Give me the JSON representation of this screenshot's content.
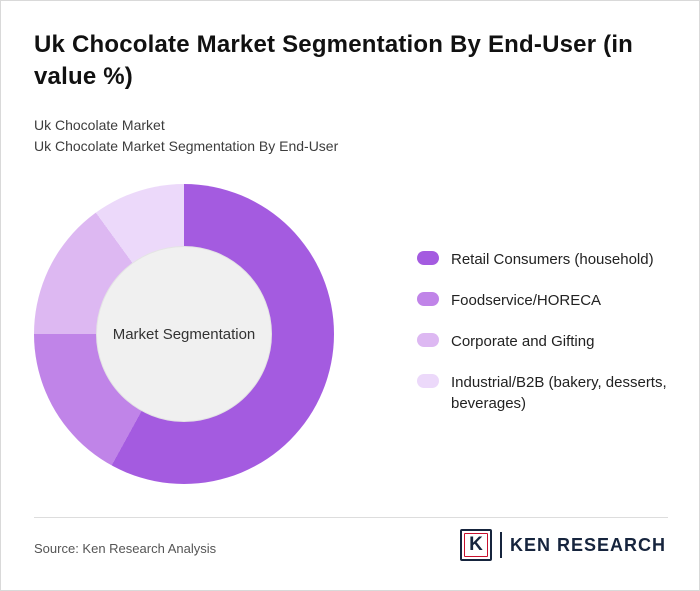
{
  "title": "Uk Chocolate Market Segmentation By End-User (in value %)",
  "subtitle_line1": "Uk Chocolate Market",
  "subtitle_line2": "Uk Chocolate Market Segmentation By End-User",
  "chart_data": {
    "type": "pie",
    "donut": true,
    "title": "Uk Chocolate Market Segmentation By End-User (in value %)",
    "center_label": "Market Segmentation",
    "start_angle_deg": 0,
    "direction": "clockwise",
    "legend_position": "right",
    "categories": [
      "Retail Consumers (household)",
      "Foodservice/HORECA",
      "Corporate and Gifting",
      "Industrial/B2B (bakery, desserts, beverages)"
    ],
    "values": [
      58,
      17,
      15,
      10
    ],
    "segments": [
      {
        "label": "Retail Consumers (household)",
        "value": 58,
        "color": "#a45be0"
      },
      {
        "label": "Foodservice/HORECA",
        "value": 17,
        "color": "#c084e8"
      },
      {
        "label": "Corporate and Gifting",
        "value": 15,
        "color": "#ddb8f2"
      },
      {
        "label": "Industrial/B2B (bakery, desserts, beverages)",
        "value": 10,
        "color": "#ecd9fa"
      }
    ],
    "hole_color": "#f0f0f0"
  },
  "footer": {
    "source": "Source: Ken Research Analysis",
    "logo_letter": "K",
    "brand": "KEN RESEARCH",
    "brand_color": "#16243d",
    "brand_accent": "#c8102e"
  }
}
